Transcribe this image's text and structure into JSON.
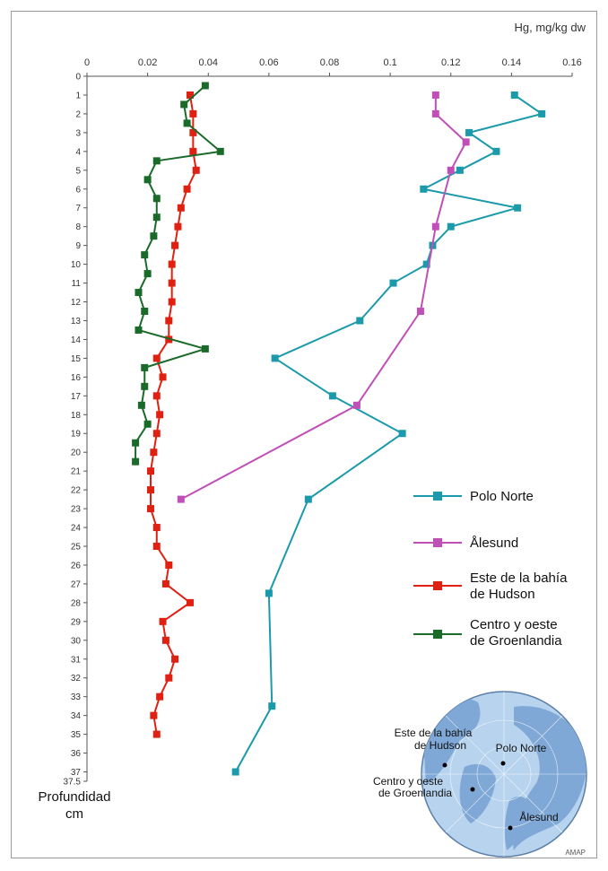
{
  "chart_data": {
    "type": "line",
    "x_unit_label": "Hg, mg/kg dw",
    "y_label_line1": "Profundidad",
    "y_label_line2": "cm",
    "xlim": [
      0,
      0.16
    ],
    "x_ticks": [
      "0",
      "0.02",
      "0.04",
      "0.06",
      "0.08",
      "0.1",
      "0.12",
      "0.14",
      "0.16"
    ],
    "ylim": [
      0,
      37.5
    ],
    "y_ticks": [
      "0",
      "1",
      "2",
      "3",
      "4",
      "5",
      "6",
      "7",
      "8",
      "9",
      "10",
      "11",
      "12",
      "13",
      "14",
      "15",
      "16",
      "17",
      "18",
      "19",
      "20",
      "21",
      "22",
      "23",
      "24",
      "25",
      "26",
      "27",
      "28",
      "29",
      "30",
      "31",
      "32",
      "33",
      "34",
      "35",
      "36",
      "37",
      "37.5"
    ],
    "series": [
      {
        "name": "Polo Norte",
        "color": "#1a9aaa",
        "points": [
          [
            0.141,
            1
          ],
          [
            0.15,
            2
          ],
          [
            0.126,
            3
          ],
          [
            0.135,
            4
          ],
          [
            0.123,
            5
          ],
          [
            0.111,
            6
          ],
          [
            0.142,
            7
          ],
          [
            0.12,
            8
          ],
          [
            0.114,
            9
          ],
          [
            0.112,
            10
          ],
          [
            0.101,
            11
          ],
          [
            0.09,
            13
          ],
          [
            0.062,
            15
          ],
          [
            0.081,
            17
          ],
          [
            0.104,
            19
          ],
          [
            0.073,
            22.5
          ],
          [
            0.06,
            27.5
          ],
          [
            0.061,
            33.5
          ],
          [
            0.049,
            37
          ]
        ]
      },
      {
        "name": "Ålesund",
        "color": "#c050b8",
        "points": [
          [
            0.115,
            1
          ],
          [
            0.115,
            2
          ],
          [
            0.125,
            3.5
          ],
          [
            0.12,
            5
          ],
          [
            0.115,
            8
          ],
          [
            0.11,
            12.5
          ],
          [
            0.089,
            17.5
          ],
          [
            0.031,
            22.5
          ]
        ]
      },
      {
        "name": "Este de la bahía de Hudson",
        "color": "#e02010",
        "points": [
          [
            0.034,
            1
          ],
          [
            0.035,
            2
          ],
          [
            0.035,
            3
          ],
          [
            0.035,
            4
          ],
          [
            0.036,
            5
          ],
          [
            0.033,
            6
          ],
          [
            0.031,
            7
          ],
          [
            0.03,
            8
          ],
          [
            0.029,
            9
          ],
          [
            0.028,
            10
          ],
          [
            0.028,
            11
          ],
          [
            0.028,
            12
          ],
          [
            0.027,
            13
          ],
          [
            0.027,
            14
          ],
          [
            0.023,
            15
          ],
          [
            0.025,
            16
          ],
          [
            0.023,
            17
          ],
          [
            0.024,
            18
          ],
          [
            0.023,
            19
          ],
          [
            0.022,
            20
          ],
          [
            0.021,
            21
          ],
          [
            0.021,
            22
          ],
          [
            0.021,
            23
          ],
          [
            0.023,
            24
          ],
          [
            0.023,
            25
          ],
          [
            0.027,
            26
          ],
          [
            0.026,
            27
          ],
          [
            0.034,
            28
          ],
          [
            0.025,
            29
          ],
          [
            0.026,
            30
          ],
          [
            0.029,
            31
          ],
          [
            0.027,
            32
          ],
          [
            0.024,
            33
          ],
          [
            0.022,
            34
          ],
          [
            0.023,
            35
          ]
        ]
      },
      {
        "name": "Centro y oeste de Groenlandia",
        "color": "#1a6a2a",
        "points": [
          [
            0.039,
            0.5
          ],
          [
            0.032,
            1.5
          ],
          [
            0.033,
            2.5
          ],
          [
            0.044,
            4
          ],
          [
            0.023,
            4.5
          ],
          [
            0.02,
            5.5
          ],
          [
            0.023,
            6.5
          ],
          [
            0.023,
            7.5
          ],
          [
            0.022,
            8.5
          ],
          [
            0.019,
            9.5
          ],
          [
            0.02,
            10.5
          ],
          [
            0.017,
            11.5
          ],
          [
            0.019,
            12.5
          ],
          [
            0.017,
            13.5
          ],
          [
            0.039,
            14.5
          ],
          [
            0.019,
            15.5
          ],
          [
            0.019,
            16.5
          ],
          [
            0.018,
            17.5
          ],
          [
            0.02,
            18.5
          ],
          [
            0.016,
            19.5
          ],
          [
            0.016,
            20.5
          ]
        ]
      }
    ],
    "legend": [
      {
        "line1": "Polo Norte",
        "line2": "",
        "color": "#1a9aaa"
      },
      {
        "line1": "Ålesund",
        "line2": "",
        "color": "#c050b8"
      },
      {
        "line1": "Este de la bahía",
        "line2": "de Hudson",
        "color": "#e02010"
      },
      {
        "line1": "Centro y oeste",
        "line2": "de Groenlandia",
        "color": "#1a6a2a"
      }
    ]
  },
  "map": {
    "label_hudson_1": "Este de la bahía",
    "label_hudson_2": "de Hudson",
    "label_pole": "Polo Norte",
    "label_green_1": "Centro y oeste",
    "label_green_2": "de Groenlandia",
    "label_alesund": "Ålesund",
    "sea_color": "#b7d3ee",
    "land_color": "#7fa8d6"
  },
  "credit": "AMAP"
}
